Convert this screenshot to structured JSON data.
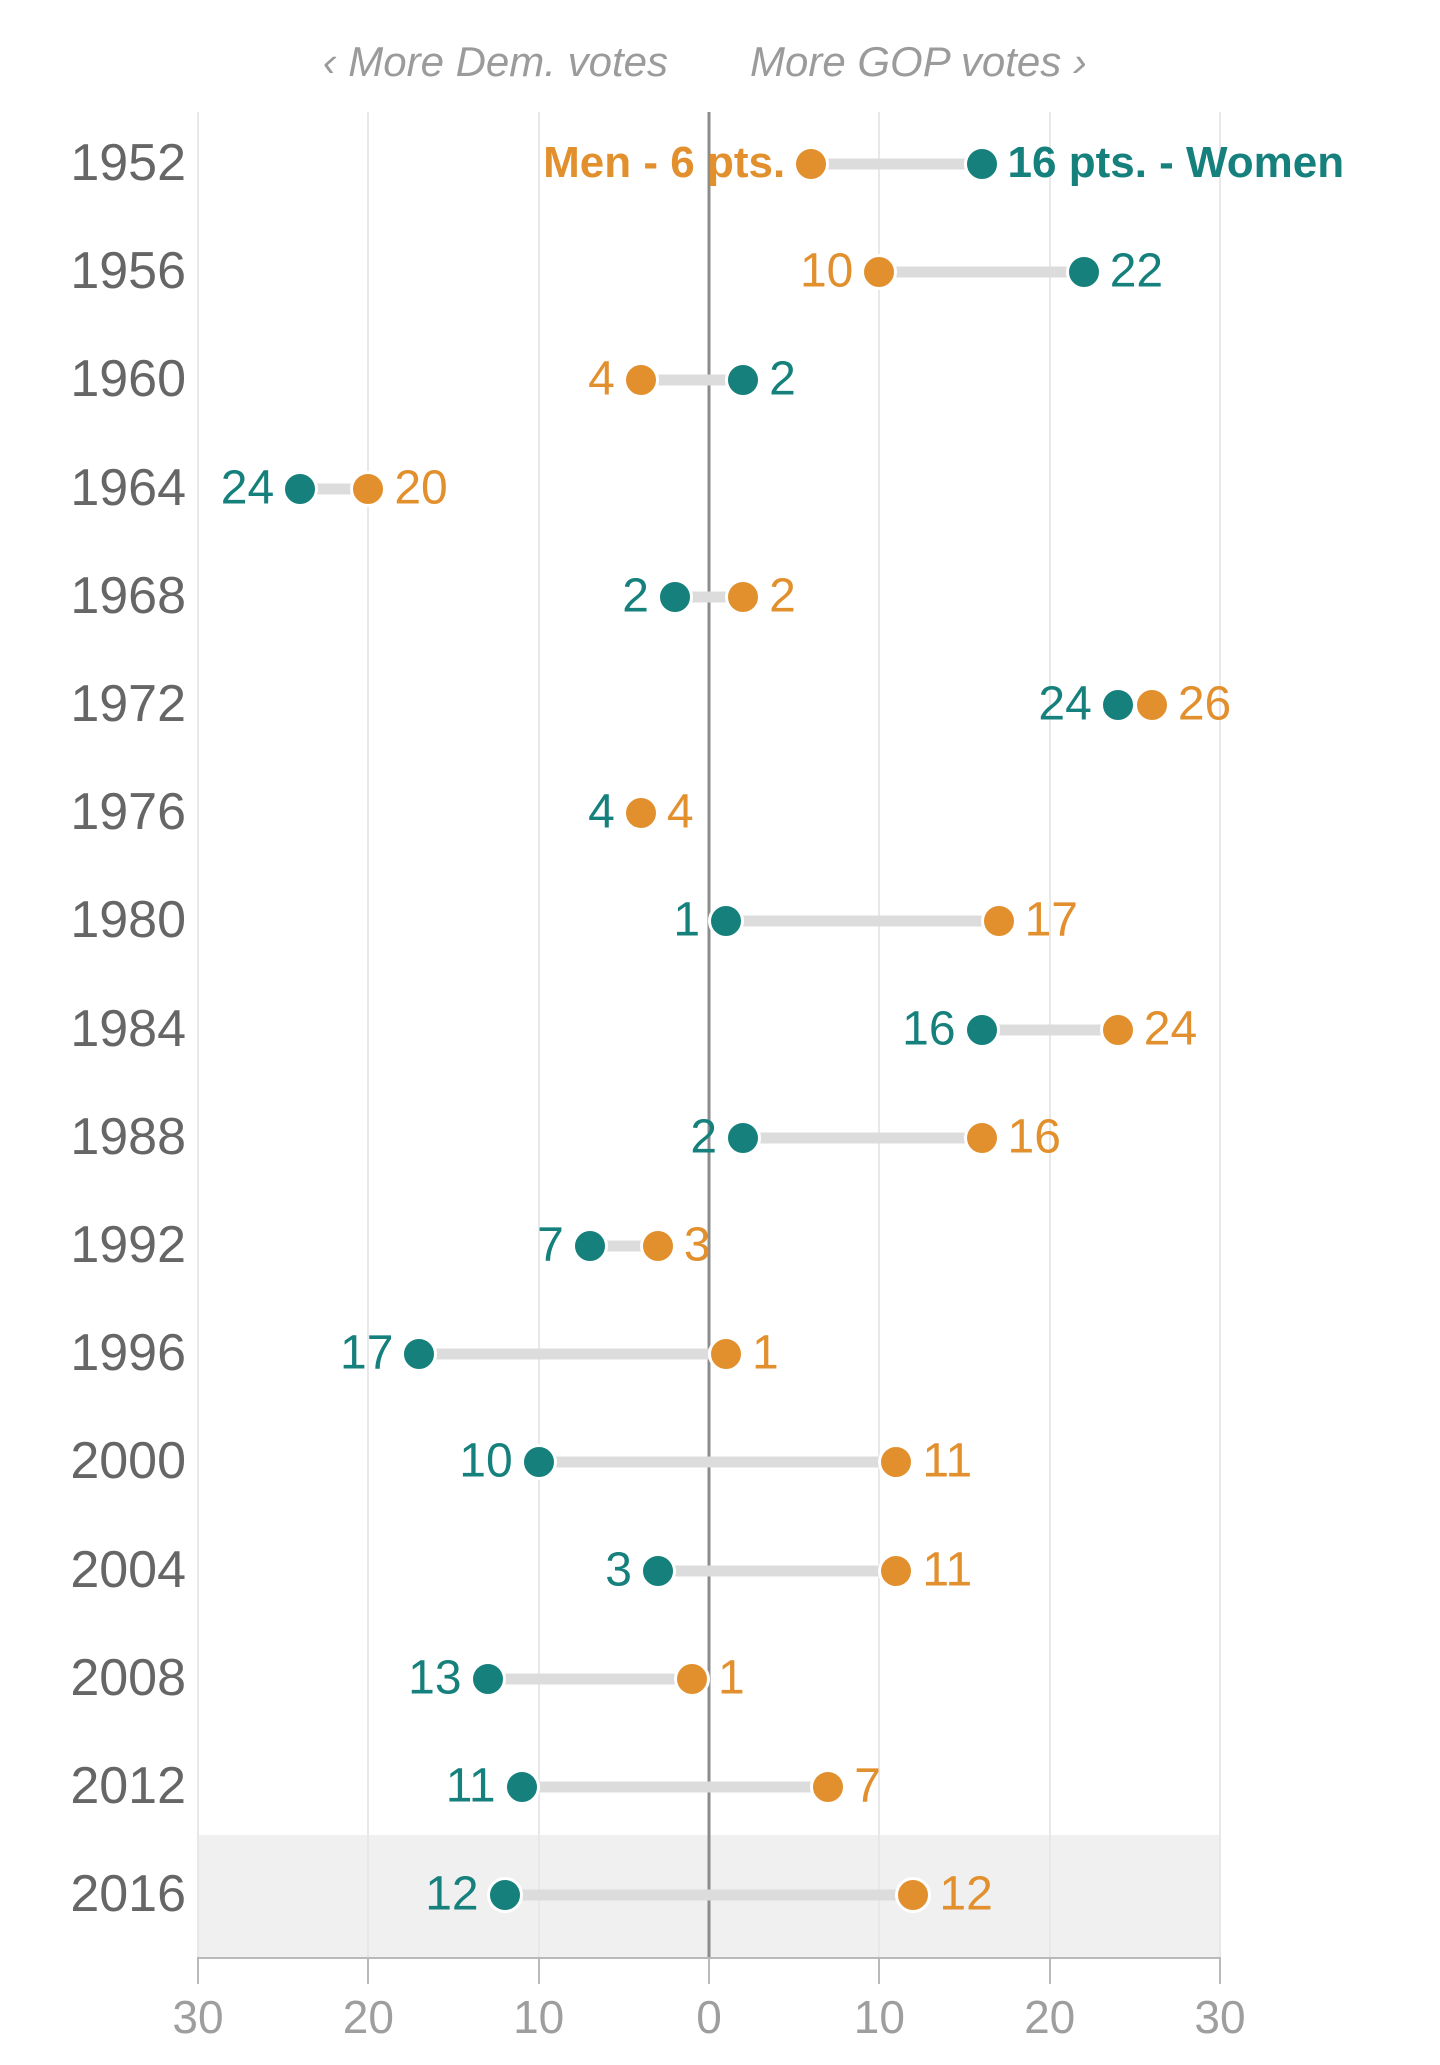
{
  "header": {
    "dem_label": "‹ More Dem. votes",
    "gop_label": "More GOP votes ›"
  },
  "colors": {
    "men": "#E2902E",
    "women": "#15807C",
    "connector": "#DCDCDC",
    "gridline": "#E8E8E8",
    "center_line": "#8C8C8C",
    "axis_line": "#B9B9B9",
    "axis_label": "#9E9E9E",
    "year_label": "#666666",
    "highlight_band": "#F0F0F0"
  },
  "chart_data": {
    "type": "dumbbell",
    "title": "",
    "direction_negative": "More Dem. votes",
    "direction_positive": "More GOP votes",
    "series_names": {
      "men": "Men",
      "women": "Women"
    },
    "unit": "pts",
    "xlim": [
      -30,
      30
    ],
    "axis_ticks": {
      "values": [
        -30,
        -20,
        -10,
        0,
        10,
        20,
        30
      ],
      "labels": [
        "30",
        "20",
        "10",
        "0",
        "10",
        "20",
        "30"
      ]
    },
    "rows": [
      {
        "year": "1952",
        "men": 6,
        "women": 16,
        "men_label": "Men - 6 pts.",
        "women_label": "16 pts. - Women",
        "annotated": true,
        "highlight": false
      },
      {
        "year": "1956",
        "men": 10,
        "women": 22,
        "men_label": "10",
        "women_label": "22",
        "annotated": false,
        "highlight": false
      },
      {
        "year": "1960",
        "men": -4,
        "women": 2,
        "men_label": "4",
        "women_label": "2",
        "annotated": false,
        "highlight": false
      },
      {
        "year": "1964",
        "men": -20,
        "women": -24,
        "men_label": "20",
        "women_label": "24",
        "annotated": false,
        "highlight": false
      },
      {
        "year": "1968",
        "men": 2,
        "women": -2,
        "men_label": "2",
        "women_label": "2",
        "annotated": false,
        "highlight": false
      },
      {
        "year": "1972",
        "men": 26,
        "women": 24,
        "men_label": "26",
        "women_label": "24",
        "annotated": false,
        "highlight": false
      },
      {
        "year": "1976",
        "men": -4,
        "women": -4,
        "men_label": "4",
        "women_label": "4",
        "annotated": false,
        "highlight": false
      },
      {
        "year": "1980",
        "men": 17,
        "women": 1,
        "men_label": "17",
        "women_label": "1",
        "annotated": false,
        "highlight": false
      },
      {
        "year": "1984",
        "men": 24,
        "women": 16,
        "men_label": "24",
        "women_label": "16",
        "annotated": false,
        "highlight": false
      },
      {
        "year": "1988",
        "men": 16,
        "women": 2,
        "men_label": "16",
        "women_label": "2",
        "annotated": false,
        "highlight": false
      },
      {
        "year": "1992",
        "men": -3,
        "women": -7,
        "men_label": "3",
        "women_label": "7",
        "annotated": false,
        "highlight": false
      },
      {
        "year": "1996",
        "men": 1,
        "women": -17,
        "men_label": "1",
        "women_label": "17",
        "annotated": false,
        "highlight": false
      },
      {
        "year": "2000",
        "men": 11,
        "women": -10,
        "men_label": "11",
        "women_label": "10",
        "annotated": false,
        "highlight": false
      },
      {
        "year": "2004",
        "men": 11,
        "women": -3,
        "men_label": "11",
        "women_label": "3",
        "annotated": false,
        "highlight": false
      },
      {
        "year": "2008",
        "men": -1,
        "women": -13,
        "men_label": "1",
        "women_label": "13",
        "annotated": false,
        "highlight": false
      },
      {
        "year": "2012",
        "men": 7,
        "women": -11,
        "men_label": "7",
        "women_label": "11",
        "annotated": false,
        "highlight": false
      },
      {
        "year": "2016",
        "men": 12,
        "women": -12,
        "men_label": "12",
        "women_label": "12",
        "annotated": false,
        "highlight": true
      }
    ]
  },
  "layout_hints": {
    "grid": "vertical gridlines every 10 pts, dark center line at 0",
    "legend_position": "inline annotation on first row"
  }
}
